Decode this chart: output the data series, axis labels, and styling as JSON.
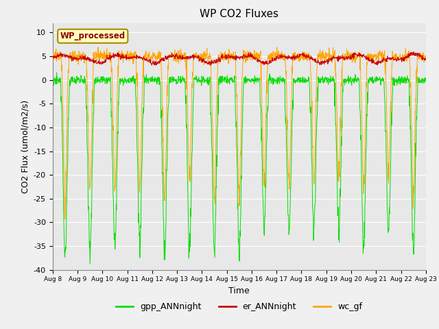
{
  "title": "WP CO2 Fluxes",
  "xlabel": "Time",
  "ylabel_plain": "CO2 Flux (umol/m2/s)",
  "ylim": [
    -40,
    12
  ],
  "yticks": [
    -40,
    -35,
    -30,
    -25,
    -20,
    -15,
    -10,
    -5,
    0,
    5,
    10
  ],
  "n_days": 15,
  "points_per_day": 96,
  "day_labels": [
    "Aug 8",
    "Aug 9",
    "Aug 10",
    "Aug 11",
    "Aug 12",
    "Aug 13",
    "Aug 14",
    "Aug 15",
    "Aug 16",
    "Aug 17",
    "Aug 18",
    "Aug 19",
    "Aug 20",
    "Aug 21",
    "Aug 22",
    "Aug 23"
  ],
  "color_gpp": "#00DD00",
  "color_er": "#CC0000",
  "color_wc": "#FFA500",
  "legend_label_gpp": "gpp_ANNnight",
  "legend_label_er": "er_ANNnight",
  "legend_label_wc": "wc_gf",
  "inset_label": "WP_processed",
  "bg_color": "#E8E8E8",
  "fig_bg_color": "#F0F0F0",
  "linewidth": 0.7
}
